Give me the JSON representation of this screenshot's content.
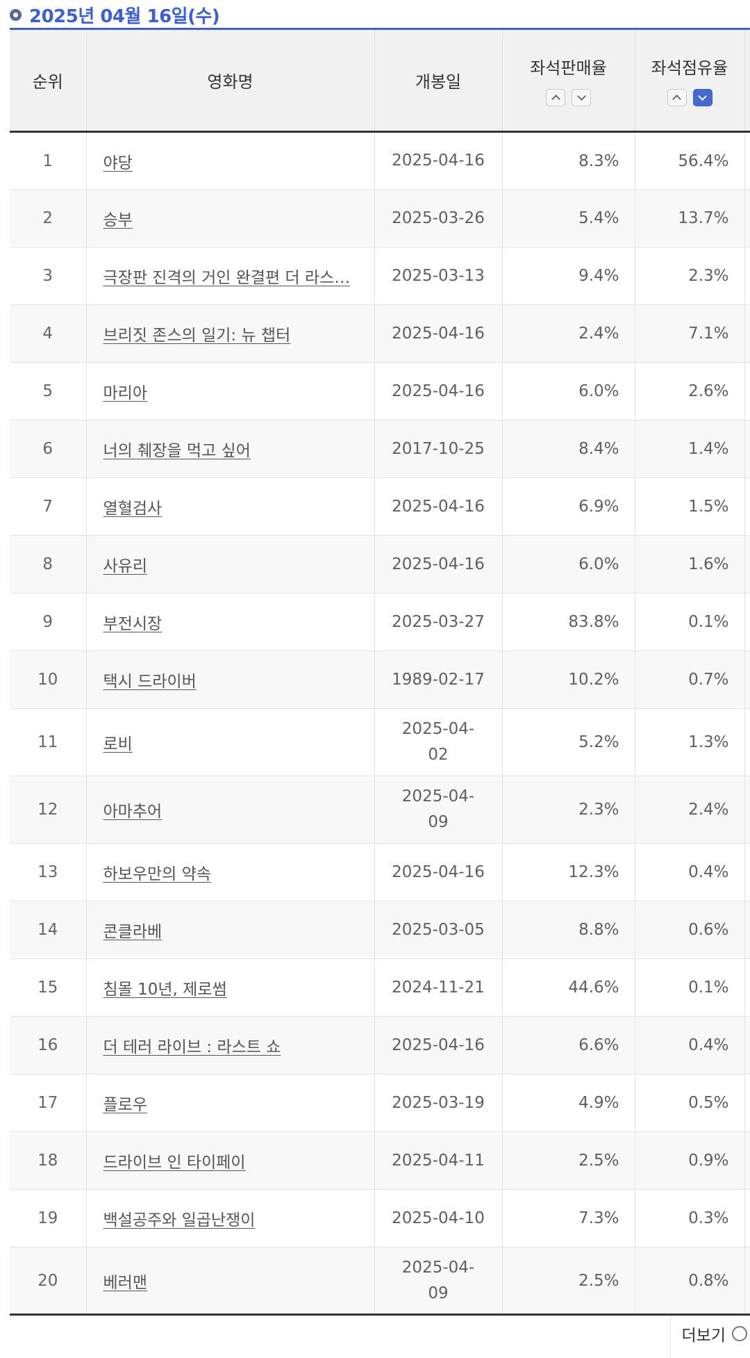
{
  "page": {
    "date_heading": "2025년 04월 16일(수)"
  },
  "table": {
    "columns": {
      "rank": "순위",
      "title": "영화명",
      "release": "개봉일",
      "seat_sales": "좌석판매율",
      "seat_share": "좌석점유율"
    },
    "sort": {
      "seat_sales": {
        "asc_active": false,
        "desc_active": false
      },
      "seat_share": {
        "asc_active": false,
        "desc_active": true
      }
    },
    "rows": [
      {
        "rank": "1",
        "title": "야당",
        "release": "2025-04-16",
        "seat_sales": "8.3%",
        "seat_share": "56.4%"
      },
      {
        "rank": "2",
        "title": "승부",
        "release": "2025-03-26",
        "seat_sales": "5.4%",
        "seat_share": "13.7%"
      },
      {
        "rank": "3",
        "title": "극장판 진격의 거인 완결편 더 라스…",
        "release": "2025-03-13",
        "seat_sales": "9.4%",
        "seat_share": "2.3%"
      },
      {
        "rank": "4",
        "title": "브리짓 존스의 일기: 뉴 챕터",
        "release": "2025-04-16",
        "seat_sales": "2.4%",
        "seat_share": "7.1%"
      },
      {
        "rank": "5",
        "title": "마리아",
        "release": "2025-04-16",
        "seat_sales": "6.0%",
        "seat_share": "2.6%"
      },
      {
        "rank": "6",
        "title": "너의 췌장을 먹고 싶어",
        "release": "2017-10-25",
        "seat_sales": "8.4%",
        "seat_share": "1.4%"
      },
      {
        "rank": "7",
        "title": "열혈검사",
        "release": "2025-04-16",
        "seat_sales": "6.9%",
        "seat_share": "1.5%"
      },
      {
        "rank": "8",
        "title": "사유리",
        "release": "2025-04-16",
        "seat_sales": "6.0%",
        "seat_share": "1.6%"
      },
      {
        "rank": "9",
        "title": "부전시장",
        "release": "2025-03-27",
        "seat_sales": "83.8%",
        "seat_share": "0.1%"
      },
      {
        "rank": "10",
        "title": "택시 드라이버",
        "release": "1989-02-17",
        "seat_sales": "10.2%",
        "seat_share": "0.7%"
      },
      {
        "rank": "11",
        "title": "로비",
        "release": "2025-04-\n02",
        "seat_sales": "5.2%",
        "seat_share": "1.3%"
      },
      {
        "rank": "12",
        "title": "아마추어",
        "release": "2025-04-\n09",
        "seat_sales": "2.3%",
        "seat_share": "2.4%"
      },
      {
        "rank": "13",
        "title": "하보우만의 약속",
        "release": "2025-04-16",
        "seat_sales": "12.3%",
        "seat_share": "0.4%"
      },
      {
        "rank": "14",
        "title": "콘클라베",
        "release": "2025-03-05",
        "seat_sales": "8.8%",
        "seat_share": "0.6%"
      },
      {
        "rank": "15",
        "title": "침몰 10년, 제로썸",
        "release": "2024-11-21",
        "seat_sales": "44.6%",
        "seat_share": "0.1%"
      },
      {
        "rank": "16",
        "title": "더 테러 라이브 : 라스트 쇼",
        "release": "2025-04-16",
        "seat_sales": "6.6%",
        "seat_share": "0.4%"
      },
      {
        "rank": "17",
        "title": "플로우",
        "release": "2025-03-19",
        "seat_sales": "4.9%",
        "seat_share": "0.5%"
      },
      {
        "rank": "18",
        "title": "드라이브 인 타이페이",
        "release": "2025-04-11",
        "seat_sales": "2.5%",
        "seat_share": "0.9%"
      },
      {
        "rank": "19",
        "title": "백설공주와 일곱난쟁이",
        "release": "2025-04-10",
        "seat_sales": "7.3%",
        "seat_share": "0.3%"
      },
      {
        "rank": "20",
        "title": "베러맨",
        "release": "2025-04-\n09",
        "seat_sales": "2.5%",
        "seat_share": "0.8%"
      }
    ]
  },
  "footer": {
    "more_label": "더보기"
  },
  "colors": {
    "accent_blue": "#3b5ed9",
    "table_top_border": "#3e61c8",
    "sort_active": "#4468d4",
    "header_bg": "#f1f1f1",
    "row_alt_bg": "#f8f8f8",
    "grid": "#e3e3e3",
    "text_dark": "#333333",
    "text_body": "#5f5f5f"
  }
}
